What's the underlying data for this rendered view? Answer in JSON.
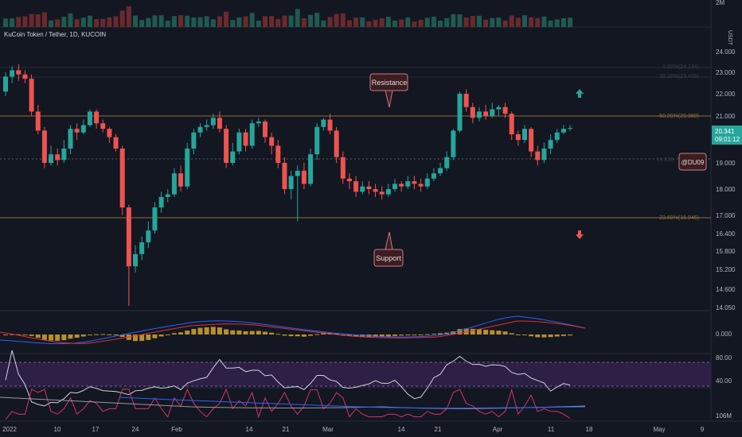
{
  "header": {
    "symbol_title": "KuCoin Token / Tether, 1D, KUCOIN"
  },
  "price_axis": {
    "currency": "USDT",
    "labels": [
      "24.000",
      "23.000",
      "22.000",
      "21.000",
      "20.000",
      "19.000",
      "18.000",
      "17.000",
      "16.400",
      "15.800",
      "15.200",
      "14.600",
      "14.050"
    ],
    "volume_label": "2M",
    "macd_label": "0.000",
    "rsi_labels": [
      "80.00",
      "40.00"
    ],
    "bottom_label": "106M"
  },
  "last_price": {
    "value": "20.341",
    "countdown": "09:01:12"
  },
  "watermark_badge": "@DU09",
  "time_axis": [
    "2022",
    "10",
    "17",
    "24",
    "Feb",
    "14",
    "21",
    "Mar",
    "14",
    "21",
    "Apr",
    "11",
    "18",
    "May",
    "9"
  ],
  "annotations": {
    "resistance_label": "Resistance",
    "support_label": "Support",
    "fib_50": "50.00%(20.980)",
    "fib_236": "23.60%(16.945)",
    "fib_top_a": "0.00%(24.134)",
    "fib_top_b": "38.20%(23.405)",
    "fib_mid": "19.218"
  },
  "colors": {
    "up": "#26a69a",
    "down": "#ef5350",
    "bg": "#131722",
    "fib": "#8d6e38",
    "rsi_band": "#2e1f44"
  },
  "chart_data": {
    "type": "candlestick",
    "title": "KuCoin Token / Tether, 1D, KUCOIN",
    "ylim": [
      14.05,
      24.6
    ],
    "levels": {
      "resistance": 20.98,
      "support": 16.945,
      "dotted": 19.218
    },
    "candles": [
      [
        22.1,
        22.8,
        23.0,
        21.9
      ],
      [
        22.8,
        23.1,
        23.3,
        22.5
      ],
      [
        23.1,
        22.9,
        23.4,
        22.6
      ],
      [
        22.9,
        22.7,
        23.1,
        22.5
      ],
      [
        22.7,
        21.2,
        22.9,
        21.0
      ],
      [
        21.2,
        20.2,
        21.5,
        20.0
      ],
      [
        20.2,
        19.0,
        20.4,
        18.8
      ],
      [
        19.0,
        19.3,
        19.6,
        18.9
      ],
      [
        19.3,
        19.1,
        19.5,
        18.9
      ],
      [
        19.1,
        19.5,
        19.8,
        19.0
      ],
      [
        19.5,
        20.3,
        20.5,
        19.3
      ],
      [
        20.3,
        20.1,
        20.6,
        19.8
      ],
      [
        20.1,
        20.5,
        20.8,
        20.0
      ],
      [
        20.5,
        21.2,
        21.3,
        20.4
      ],
      [
        21.2,
        20.6,
        21.3,
        20.3
      ],
      [
        20.6,
        20.3,
        20.8,
        20.1
      ],
      [
        20.3,
        19.9,
        20.4,
        19.7
      ],
      [
        19.9,
        19.5,
        20.0,
        19.4
      ],
      [
        19.5,
        17.3,
        19.6,
        17.0
      ],
      [
        17.3,
        15.3,
        17.4,
        14.1
      ],
      [
        15.3,
        15.7,
        16.0,
        15.1
      ],
      [
        15.7,
        16.1,
        16.3,
        15.5
      ],
      [
        16.1,
        16.5,
        16.8,
        15.9
      ],
      [
        16.5,
        17.3,
        17.5,
        16.4
      ],
      [
        17.3,
        17.7,
        17.9,
        17.1
      ],
      [
        17.7,
        17.8,
        18.0,
        17.5
      ],
      [
        17.8,
        18.6,
        18.8,
        17.7
      ],
      [
        18.6,
        18.1,
        18.9,
        17.9
      ],
      [
        18.1,
        19.5,
        19.7,
        18.0
      ],
      [
        19.5,
        20.1,
        20.3,
        19.3
      ],
      [
        20.1,
        20.4,
        20.6,
        19.9
      ],
      [
        20.4,
        20.5,
        20.8,
        20.2
      ],
      [
        20.5,
        20.9,
        21.1,
        20.3
      ],
      [
        20.9,
        20.3,
        21.2,
        20.1
      ],
      [
        20.3,
        19.0,
        20.5,
        18.8
      ],
      [
        19.0,
        19.4,
        19.7,
        18.9
      ],
      [
        19.4,
        20.1,
        20.3,
        19.3
      ],
      [
        20.1,
        19.6,
        20.3,
        19.4
      ],
      [
        19.6,
        20.6,
        20.8,
        19.5
      ],
      [
        20.6,
        20.7,
        20.9,
        20.4
      ],
      [
        20.7,
        19.9,
        20.8,
        19.7
      ],
      [
        19.9,
        19.6,
        20.1,
        19.3
      ],
      [
        19.6,
        19.0,
        19.8,
        18.8
      ],
      [
        19.0,
        18.0,
        19.2,
        17.8
      ],
      [
        18.0,
        18.5,
        18.7,
        17.6
      ],
      [
        18.5,
        18.7,
        18.9,
        16.8
      ],
      [
        18.7,
        18.2,
        19.0,
        18.0
      ],
      [
        18.2,
        19.3,
        19.5,
        18.1
      ],
      [
        19.3,
        20.4,
        20.6,
        19.1
      ],
      [
        20.4,
        20.8,
        20.9,
        20.2
      ],
      [
        20.8,
        20.2,
        21.1,
        20.0
      ],
      [
        20.2,
        19.2,
        20.4,
        19.0
      ],
      [
        19.2,
        18.4,
        19.4,
        18.2
      ],
      [
        18.4,
        18.3,
        18.6,
        18.0
      ],
      [
        18.3,
        17.9,
        18.5,
        17.7
      ],
      [
        17.9,
        18.1,
        18.3,
        17.8
      ],
      [
        18.1,
        18.0,
        18.3,
        17.8
      ],
      [
        18.0,
        17.9,
        18.2,
        17.7
      ],
      [
        17.9,
        17.8,
        18.1,
        17.6
      ],
      [
        17.8,
        18.0,
        18.2,
        17.7
      ],
      [
        18.0,
        18.2,
        18.4,
        17.9
      ],
      [
        18.2,
        18.1,
        18.3,
        17.9
      ],
      [
        18.1,
        18.3,
        18.5,
        18.0
      ],
      [
        18.3,
        18.2,
        18.5,
        18.0
      ],
      [
        18.2,
        18.1,
        18.4,
        17.9
      ],
      [
        18.1,
        18.4,
        18.6,
        18.0
      ],
      [
        18.4,
        18.6,
        18.8,
        18.3
      ],
      [
        18.6,
        18.8,
        19.0,
        18.5
      ],
      [
        18.8,
        19.2,
        19.4,
        18.7
      ],
      [
        19.2,
        20.2,
        20.3,
        19.1
      ],
      [
        20.2,
        22.0,
        22.1,
        20.1
      ],
      [
        22.0,
        21.4,
        22.2,
        21.2
      ],
      [
        21.4,
        20.9,
        21.6,
        20.6
      ],
      [
        20.9,
        21.2,
        21.4,
        20.7
      ],
      [
        21.2,
        21.0,
        21.5,
        20.8
      ],
      [
        21.0,
        21.3,
        21.6,
        20.9
      ],
      [
        21.3,
        21.4,
        21.5,
        21.0
      ],
      [
        21.4,
        21.1,
        21.6,
        20.9
      ],
      [
        21.1,
        20.0,
        21.2,
        19.8
      ],
      [
        20.0,
        19.8,
        20.2,
        19.6
      ],
      [
        19.8,
        20.3,
        20.5,
        19.7
      ],
      [
        20.3,
        19.4,
        20.4,
        19.2
      ],
      [
        19.4,
        19.1,
        19.6,
        18.9
      ],
      [
        19.1,
        19.5,
        19.7,
        19.0
      ],
      [
        19.5,
        19.8,
        20.0,
        19.3
      ],
      [
        19.8,
        20.1,
        20.3,
        19.7
      ],
      [
        20.1,
        20.3,
        20.5,
        20.0
      ],
      [
        20.3,
        20.34,
        20.5,
        20.2
      ]
    ]
  }
}
